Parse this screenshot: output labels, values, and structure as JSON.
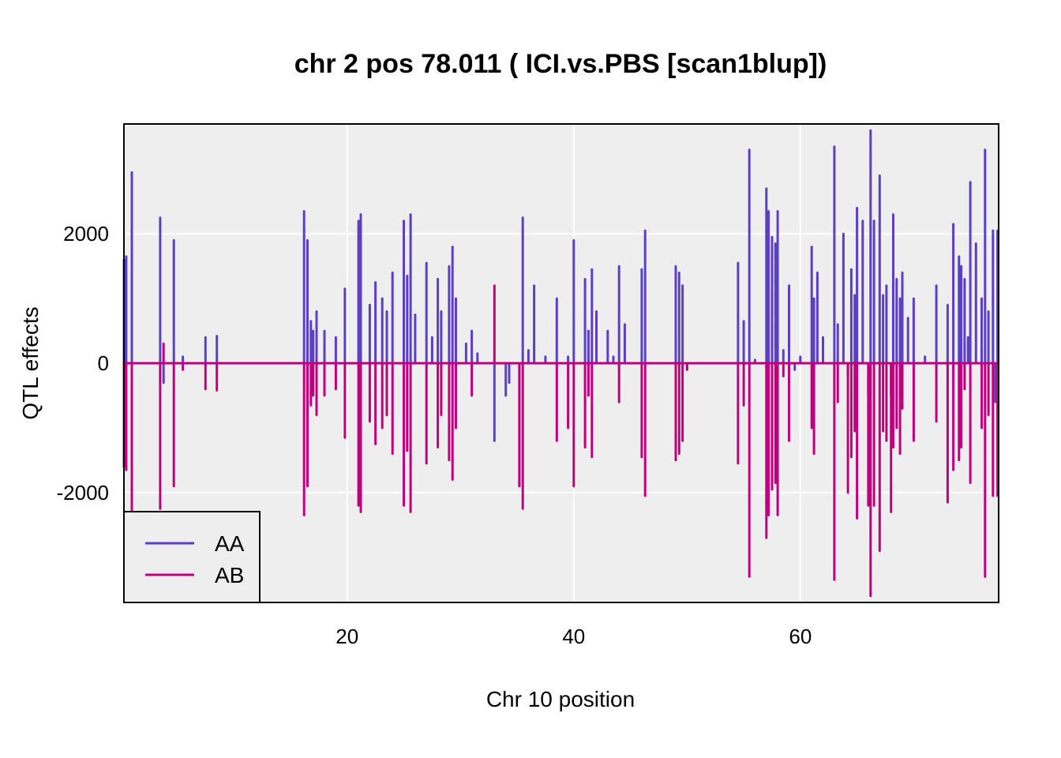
{
  "chart_data": {
    "type": "line",
    "title": "chr 2 pos 78.011 ( ICI.vs.PBS  [scan1blup])",
    "xlabel": "Chr 10 position",
    "ylabel": "QTL effects",
    "xlim": [
      0.3,
      77.5
    ],
    "ylim": [
      -3700,
      3700
    ],
    "xticks": [
      20,
      40,
      60
    ],
    "yticks": [
      -2000,
      0,
      2000
    ],
    "grid": true,
    "legend_position": "bottom-left",
    "colors": {
      "AA": "#5b3fc4",
      "AB": "#c0007e",
      "panel": "#eeeeee",
      "grid": "#ffffff"
    },
    "series": [
      {
        "name": "AA",
        "color": "#5b3fc4",
        "x": [
          0.3,
          0.5,
          1.0,
          3.5,
          3.8,
          4.7,
          5.5,
          6.5,
          7.5,
          8.5,
          9.5,
          16.2,
          16.5,
          16.8,
          17.0,
          17.3,
          18.0,
          19.0,
          19.8,
          21.0,
          21.2,
          22.0,
          22.5,
          23.1,
          23.5,
          24.0,
          25.0,
          25.3,
          25.6,
          26.0,
          27.0,
          27.5,
          28.0,
          28.3,
          29.0,
          29.3,
          29.6,
          30.5,
          31.0,
          31.5,
          33.0,
          34.0,
          34.3,
          35.2,
          35.5,
          36.0,
          36.5,
          37.5,
          38.5,
          39.5,
          40.0,
          41.0,
          41.3,
          41.6,
          42.0,
          43.0,
          43.5,
          44.0,
          44.5,
          46.0,
          46.3,
          49.0,
          49.3,
          49.6,
          50.0,
          54.5,
          55.0,
          55.5,
          56.0,
          57.0,
          57.2,
          57.5,
          57.8,
          58.0,
          58.5,
          59.0,
          59.5,
          60.0,
          61.0,
          61.2,
          61.5,
          62.0,
          63.0,
          63.3,
          63.8,
          64.2,
          64.5,
          64.8,
          65.0,
          65.5,
          66.0,
          66.2,
          66.5,
          67.0,
          67.3,
          67.6,
          68.0,
          68.2,
          68.5,
          68.8,
          69.0,
          69.5,
          70.0,
          71.0,
          72.0,
          73.0,
          73.5,
          74.0,
          74.2,
          74.5,
          74.8,
          75.0,
          75.5,
          76.0,
          76.3,
          76.6,
          77.0,
          77.2,
          77.4
        ],
        "values": [
          1600,
          1650,
          2950,
          2250,
          -300,
          1900,
          100,
          0,
          400,
          420,
          0,
          2350,
          1900,
          650,
          500,
          800,
          500,
          400,
          1150,
          2200,
          2300,
          900,
          1250,
          1000,
          800,
          1400,
          2200,
          1350,
          2300,
          750,
          1550,
          400,
          1300,
          800,
          1500,
          1800,
          1000,
          300,
          500,
          150,
          -1200,
          -500,
          -300,
          -1900,
          2250,
          200,
          1200,
          100,
          1000,
          100,
          1900,
          1300,
          500,
          1450,
          800,
          500,
          100,
          1500,
          600,
          1450,
          2050,
          1500,
          1400,
          1200,
          -100,
          1550,
          650,
          3300,
          50,
          2700,
          2350,
          1950,
          1850,
          2350,
          200,
          1200,
          -100,
          100,
          1800,
          1000,
          1400,
          400,
          3350,
          600,
          2000,
          -200,
          1450,
          1050,
          2400,
          2200,
          -500,
          3600,
          2200,
          2900,
          1050,
          1200,
          -500,
          2300,
          1300,
          1000,
          1400,
          700,
          1000,
          100,
          1200,
          900,
          2150,
          1650,
          1500,
          1300,
          400,
          2800,
          1850,
          1000,
          3300,
          800,
          2050,
          -600,
          2050
        ]
      },
      {
        "name": "AB",
        "color": "#c0007e",
        "x": [
          0.3,
          0.5,
          1.0,
          3.5,
          3.8,
          4.7,
          5.5,
          7.5,
          8.5,
          16.2,
          16.5,
          16.8,
          17.0,
          17.3,
          18.0,
          19.0,
          19.8,
          21.0,
          21.2,
          22.0,
          22.5,
          23.1,
          23.5,
          24.0,
          25.0,
          25.3,
          25.6,
          27.0,
          28.0,
          28.3,
          29.0,
          29.3,
          29.6,
          31.0,
          33.0,
          35.2,
          35.5,
          38.5,
          39.5,
          40.0,
          41.0,
          41.3,
          41.6,
          44.0,
          46.0,
          46.3,
          49.0,
          49.3,
          49.6,
          50.0,
          54.5,
          55.0,
          55.5,
          57.0,
          57.2,
          57.5,
          57.8,
          58.0,
          58.5,
          59.0,
          61.0,
          61.2,
          63.0,
          63.3,
          64.2,
          64.5,
          64.8,
          65.0,
          66.0,
          66.2,
          66.5,
          67.0,
          67.3,
          67.6,
          68.0,
          68.2,
          68.5,
          68.8,
          69.0,
          70.0,
          72.0,
          73.0,
          73.5,
          74.0,
          74.2,
          74.5,
          75.0,
          76.0,
          76.3,
          76.6,
          77.0,
          77.4
        ],
        "values": [
          -1600,
          -1650,
          -2950,
          -2250,
          300,
          -1900,
          -100,
          -400,
          -420,
          -2350,
          -1900,
          -650,
          -500,
          -800,
          -500,
          -400,
          -1150,
          -2200,
          -2300,
          -900,
          -1250,
          -1000,
          -800,
          -1400,
          -2200,
          -1350,
          -2300,
          -1550,
          -1300,
          -800,
          -1500,
          -1800,
          -1000,
          -500,
          1200,
          -1900,
          -2250,
          -1200,
          -1000,
          -1900,
          -1300,
          -500,
          -1450,
          -600,
          -1450,
          -2050,
          -1500,
          -1400,
          -1200,
          -100,
          -1550,
          -650,
          -3300,
          -2700,
          -2350,
          -1950,
          -1850,
          -2350,
          -200,
          -1200,
          -1000,
          -1400,
          -3350,
          -600,
          -2000,
          -1450,
          -1050,
          -2400,
          -2200,
          -3600,
          -2200,
          -2900,
          -1050,
          -1200,
          -2300,
          -1300,
          -1000,
          -1400,
          -700,
          -1200,
          -900,
          -2150,
          -1650,
          -1500,
          -1300,
          -400,
          -1850,
          -1000,
          -3300,
          -800,
          -2050,
          -2050
        ]
      }
    ]
  }
}
